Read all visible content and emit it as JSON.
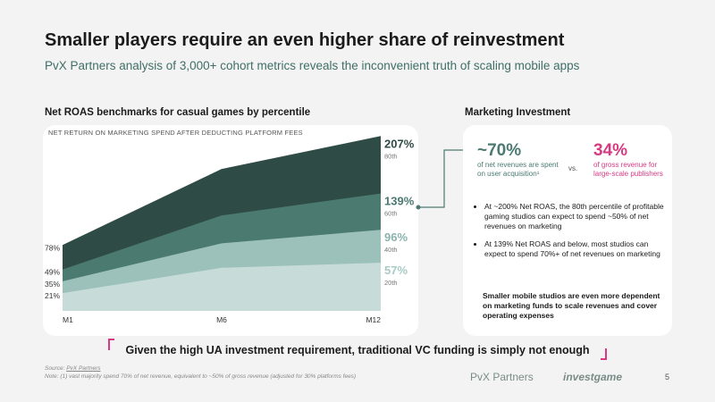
{
  "header": {
    "title": "Smaller players require an even higher share of reinvestment",
    "subtitle": "PvX Partners analysis of 3,000+ cohort metrics reveals the inconvenient truth of scaling mobile apps"
  },
  "chart_data": {
    "type": "area",
    "title": "Net ROAS benchmarks for casual games by percentile",
    "subtitle": "NET RETURN ON MARKETING SPEND AFTER DEDUCTING PLATFORM FEES",
    "categories": [
      "M1",
      "M6",
      "M12"
    ],
    "ylim": [
      0,
      220
    ],
    "series": [
      {
        "name": "80th",
        "color": "#2f4b45",
        "label_color": "#2f4b45",
        "values": [
          78,
          168,
          207
        ],
        "value_labels": [
          "78%",
          null,
          "207%"
        ]
      },
      {
        "name": "60th",
        "color": "#4b7a71",
        "label_color": "#4b7a71",
        "values": [
          49,
          113,
          139
        ],
        "value_labels": [
          "49%",
          null,
          "139%"
        ]
      },
      {
        "name": "40th",
        "color": "#9cc0ba",
        "label_color": "#8ab3ad",
        "values": [
          35,
          80,
          96
        ],
        "value_labels": [
          "35%",
          null,
          "96%"
        ]
      },
      {
        "name": "20th",
        "color": "#c7dcd8",
        "label_color": "#a8cac4",
        "values": [
          21,
          51,
          57
        ],
        "value_labels": [
          "21%",
          null,
          "57%"
        ]
      }
    ]
  },
  "marketing": {
    "title": "Marketing Investment",
    "stat1": {
      "value": "~70%",
      "text": "of net revenues are spent on user acquisition¹"
    },
    "vs": "vs.",
    "stat2": {
      "value": "34%",
      "text": "of gross revenue for large-scale publishers"
    },
    "bullets": [
      "At ~200% Net ROAS, the 80th percentile of profitable gaming studios can expect to spend ~50% of net revenues on marketing",
      "At 139% Net ROAS and below, most studios can expect to spend 70%+ of net revenues on marketing"
    ],
    "conclusion": "Smaller mobile studios are even more dependent on marketing funds to scale revenues and cover operating expenses"
  },
  "callout": "Given the high UA investment requirement, traditional VC funding is simply not enough",
  "footer": {
    "source_label": "Source:",
    "source": "PvX Partners",
    "note": "Note: (1) vast majority spend 70% of net revenue, equivalent to ~50% of gross revenue (adjusted for 30% platforms fees)",
    "logos": [
      "PvX Partners",
      "investgame"
    ],
    "page": "5"
  }
}
